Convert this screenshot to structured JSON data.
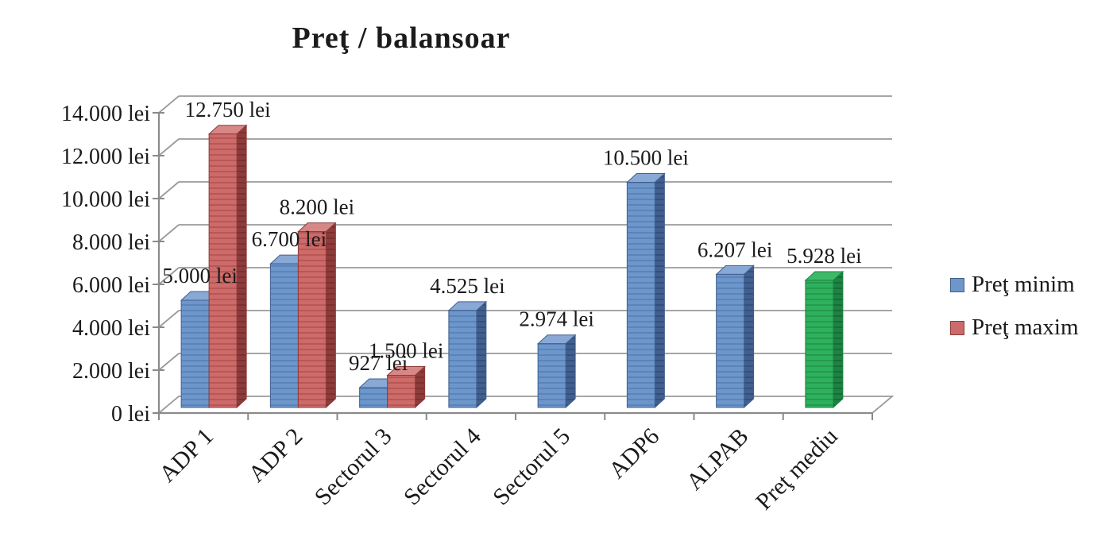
{
  "title": "Preţ / balansoar",
  "chart_data": {
    "type": "bar",
    "style": "3d-clustered-bar-excel",
    "title": "Preţ / balansoar",
    "unit": "lei",
    "grid": true,
    "categories": [
      "ADP 1",
      "ADP 2",
      "Sectorul 3",
      "Sectorul 4",
      "Sectorul 5",
      "ADP6",
      "ALPAB",
      "Preţ mediu"
    ],
    "series": [
      {
        "name": "Preţ minim",
        "in_legend": true,
        "colors": {
          "face": "#6d96cb",
          "stripe": "#5a84ba",
          "top": "#88a8d6",
          "side": "#41608f",
          "side_stripe": "#354f7b"
        },
        "values": [
          5000,
          6700,
          927,
          4525,
          2974,
          10500,
          6207,
          null
        ],
        "labels": [
          "5.000 lei",
          "6.700 lei",
          "927 lei",
          "4.525 lei",
          "2.974 lei",
          "10.500 lei",
          "6.207 lei",
          null
        ]
      },
      {
        "name": "Preţ maxim",
        "in_legend": true,
        "colors": {
          "face": "#cc6b69",
          "stripe": "#b85755",
          "top": "#d78886",
          "side": "#8e3c3b",
          "side_stripe": "#7a302f"
        },
        "values": [
          12750,
          8200,
          1500,
          null,
          null,
          null,
          null,
          null
        ],
        "labels": [
          "12.750 lei",
          "8.200 lei",
          "1.500 lei",
          null,
          null,
          null,
          null,
          null
        ]
      },
      {
        "name": "Preţ mediu",
        "in_legend": false,
        "colors": {
          "face": "#2eb15c",
          "stripe": "#259a4e",
          "top": "#3cba68",
          "side": "#1e8243",
          "side_stripe": "#186c37"
        },
        "values": [
          null,
          null,
          null,
          null,
          null,
          null,
          null,
          5928
        ],
        "labels": [
          null,
          null,
          null,
          null,
          null,
          null,
          null,
          "5.928 lei"
        ]
      }
    ],
    "y_axis": {
      "min": 0,
      "max": 14000,
      "step": 2000,
      "ticks": [
        "0 lei",
        "2.000 lei",
        "4.000 lei",
        "6.000 lei",
        "8.000 lei",
        "10.000 lei",
        "12.000 lei",
        "14.000 lei"
      ]
    },
    "legend": {
      "position": "right",
      "entries": [
        "Preţ minim",
        "Preţ maxim"
      ]
    }
  }
}
